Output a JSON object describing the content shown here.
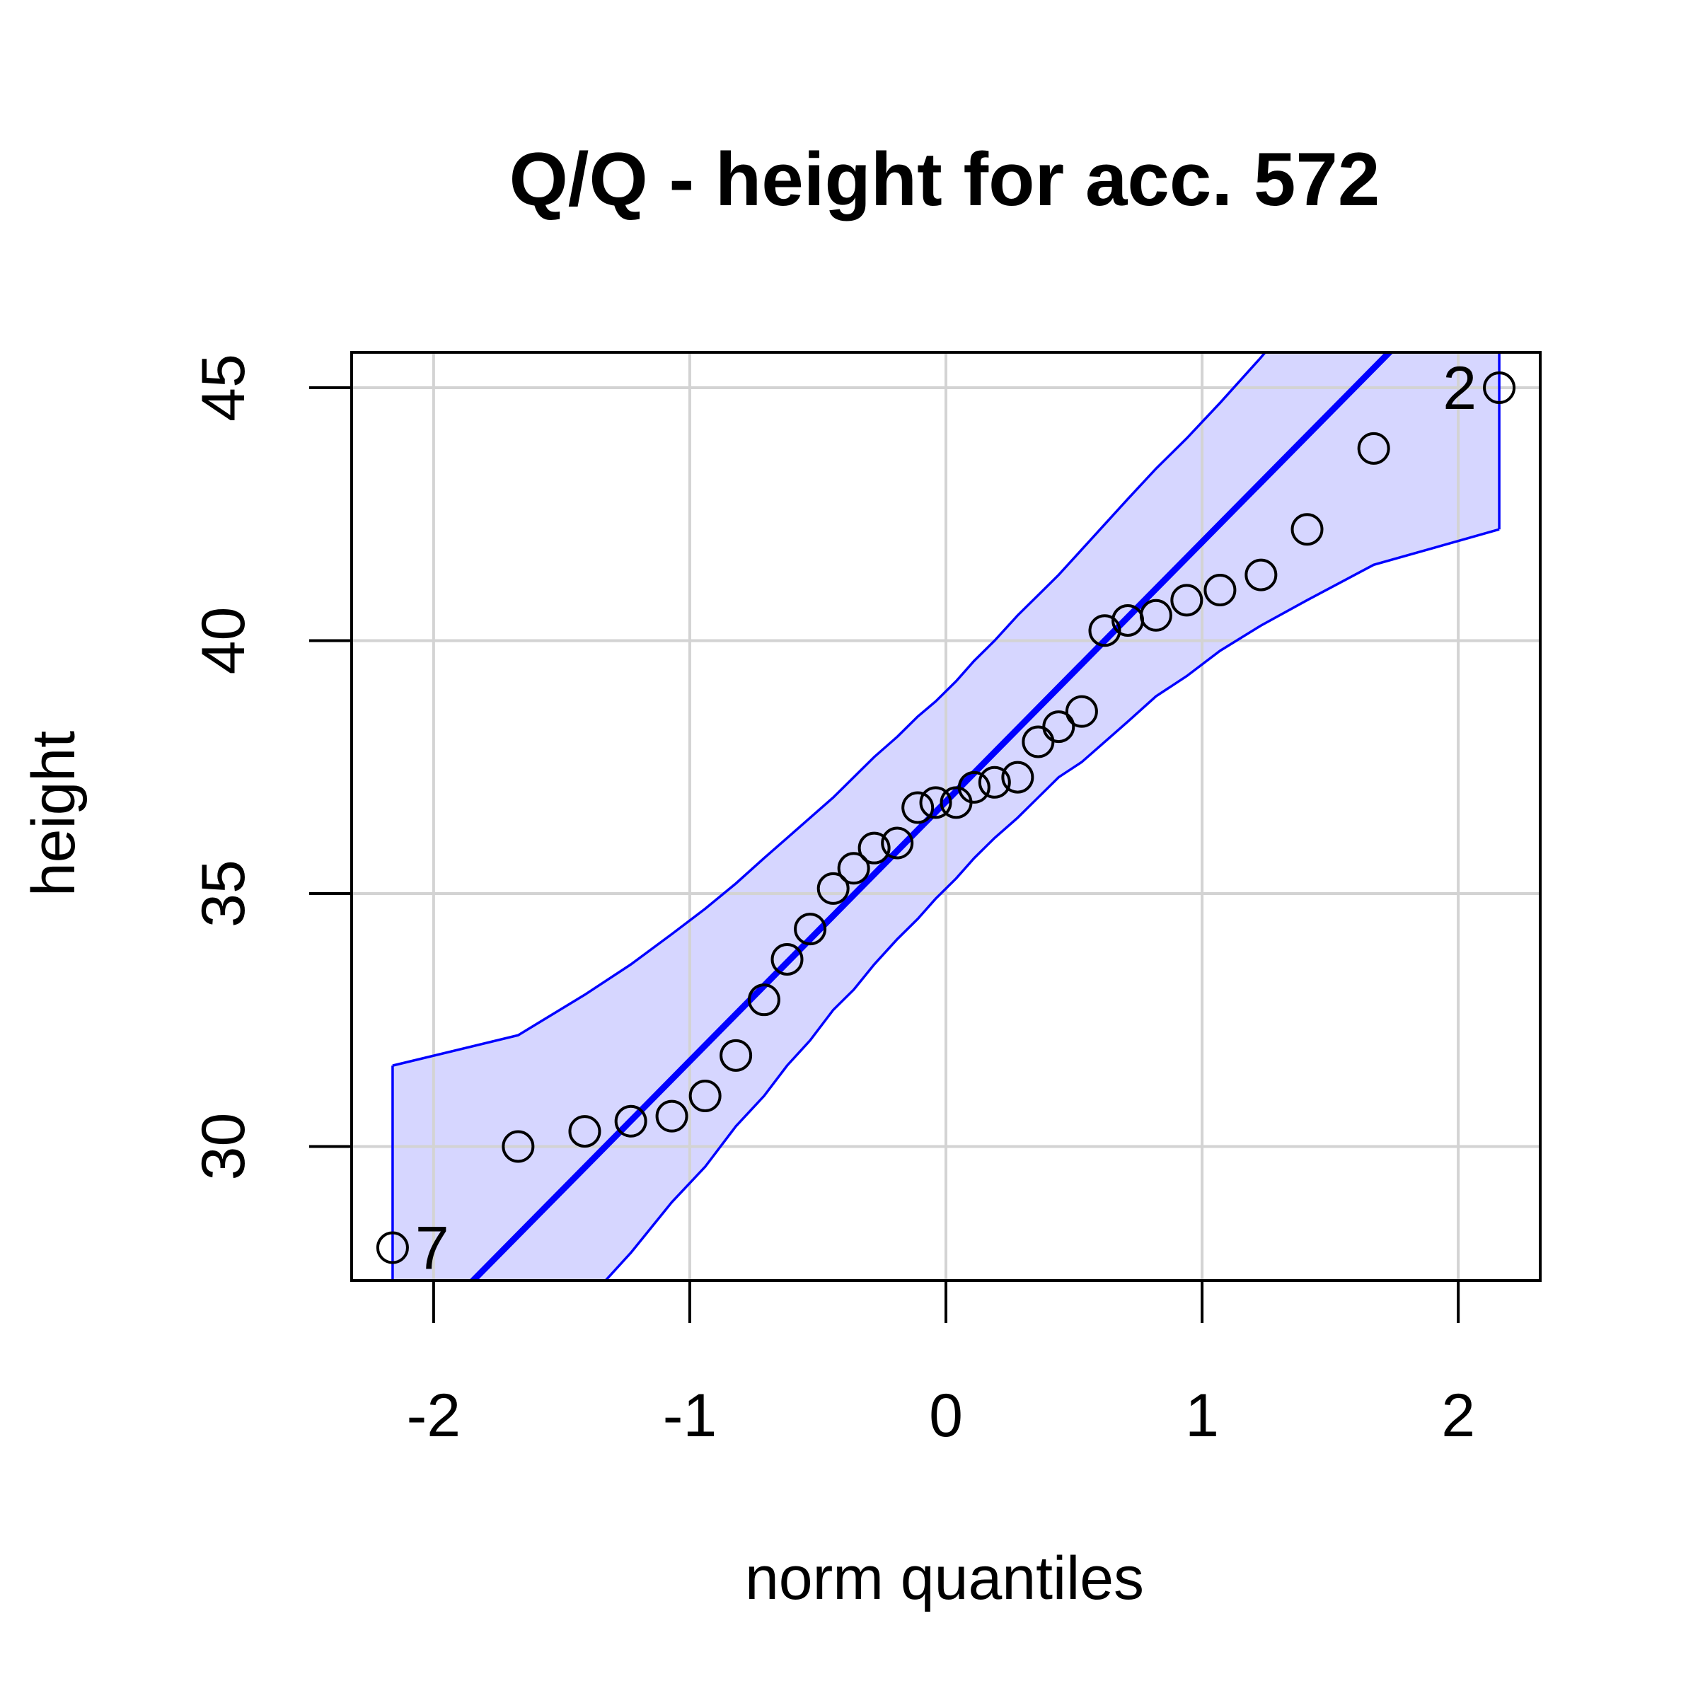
{
  "chart_data": {
    "type": "scatter",
    "title": "Q/Q - height for acc. 572",
    "xlabel": "norm quantiles",
    "ylabel": "height",
    "xlim": [
      -2.32,
      2.32
    ],
    "ylim": [
      27.35,
      45.7
    ],
    "x_ticks": [
      -2,
      -1,
      0,
      1,
      2
    ],
    "y_ticks": [
      30,
      35,
      40,
      45
    ],
    "grid": true,
    "colors": {
      "points": "#000000",
      "reference_line": "#0000ff",
      "envelope_fill": "#d6d6ff",
      "envelope_line": "#0000ff",
      "grid": "#d3d3d3"
    },
    "points": [
      {
        "x": -2.16,
        "y": 28.0
      },
      {
        "x": -1.67,
        "y": 30.0
      },
      {
        "x": -1.41,
        "y": 30.3
      },
      {
        "x": -1.23,
        "y": 30.5
      },
      {
        "x": -1.07,
        "y": 30.6
      },
      {
        "x": -0.94,
        "y": 31.0
      },
      {
        "x": -0.82,
        "y": 31.8
      },
      {
        "x": -0.71,
        "y": 32.9
      },
      {
        "x": -0.62,
        "y": 33.7
      },
      {
        "x": -0.53,
        "y": 34.3
      },
      {
        "x": -0.44,
        "y": 35.1
      },
      {
        "x": -0.36,
        "y": 35.5
      },
      {
        "x": -0.28,
        "y": 35.9
      },
      {
        "x": -0.19,
        "y": 36.0
      },
      {
        "x": -0.11,
        "y": 36.7
      },
      {
        "x": -0.04,
        "y": 36.8
      },
      {
        "x": 0.04,
        "y": 36.8
      },
      {
        "x": 0.11,
        "y": 37.1
      },
      {
        "x": 0.19,
        "y": 37.2
      },
      {
        "x": 0.28,
        "y": 37.3
      },
      {
        "x": 0.36,
        "y": 38.0
      },
      {
        "x": 0.44,
        "y": 38.3
      },
      {
        "x": 0.53,
        "y": 38.6
      },
      {
        "x": 0.62,
        "y": 40.2
      },
      {
        "x": 0.71,
        "y": 40.4
      },
      {
        "x": 0.82,
        "y": 40.5
      },
      {
        "x": 0.94,
        "y": 40.8
      },
      {
        "x": 1.07,
        "y": 41.0
      },
      {
        "x": 1.23,
        "y": 41.3
      },
      {
        "x": 1.41,
        "y": 42.2
      },
      {
        "x": 1.67,
        "y": 43.8
      },
      {
        "x": 2.16,
        "y": 45.0
      }
    ],
    "labeled_points": [
      {
        "x": -2.16,
        "y": 28.0,
        "label": "7",
        "side": "right"
      },
      {
        "x": 2.16,
        "y": 45.0,
        "label": "2",
        "side": "left"
      }
    ],
    "reference_line": {
      "intercept": 36.82,
      "slope": 5.13
    },
    "envelope": {
      "x": [
        -2.16,
        -1.67,
        -1.41,
        -1.23,
        -1.07,
        -0.94,
        -0.82,
        -0.71,
        -0.62,
        -0.53,
        -0.44,
        -0.36,
        -0.28,
        -0.19,
        -0.11,
        -0.04,
        0.04,
        0.11,
        0.19,
        0.28,
        0.36,
        0.44,
        0.53,
        0.62,
        0.71,
        0.82,
        0.94,
        1.07,
        1.23,
        1.41,
        1.67,
        2.16
      ],
      "upper": [
        31.6,
        32.2,
        33.0,
        33.6,
        34.2,
        34.7,
        35.2,
        35.7,
        36.1,
        36.5,
        36.9,
        37.3,
        37.7,
        38.1,
        38.5,
        38.8,
        39.2,
        39.6,
        40.0,
        40.5,
        40.9,
        41.3,
        41.8,
        42.3,
        42.8,
        43.4,
        44.0,
        44.7,
        45.6,
        46.7,
        48.3,
        50.8
      ],
      "lower": [
        22.8,
        25.4,
        26.9,
        27.9,
        28.9,
        29.6,
        30.4,
        31.0,
        31.6,
        32.1,
        32.7,
        33.1,
        33.6,
        34.1,
        34.5,
        34.9,
        35.3,
        35.7,
        36.1,
        36.5,
        36.9,
        37.3,
        37.6,
        38.0,
        38.4,
        38.9,
        39.3,
        39.8,
        40.3,
        40.8,
        41.5,
        42.2
      ]
    }
  }
}
